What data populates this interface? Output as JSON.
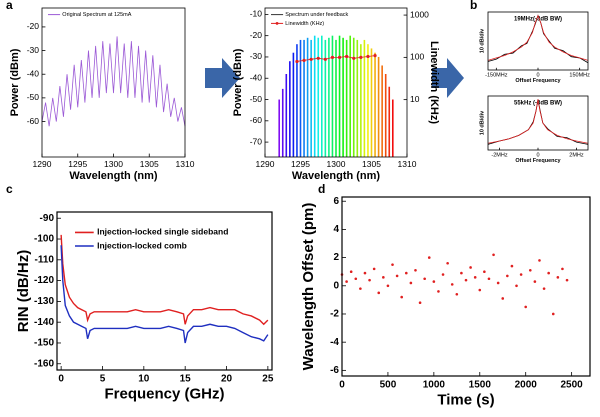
{
  "panel_labels": [
    "a",
    "b",
    "c",
    "d"
  ],
  "chart_data": [
    {
      "type": "line",
      "xlabel": "Wavelength (nm)",
      "ylabel": "Power (dBm)",
      "legend": "upper left",
      "xlim": [
        1290,
        1310
      ],
      "xticks": [
        1290,
        1295,
        1300,
        1305,
        1310
      ],
      "ylim": [
        -75,
        -12
      ],
      "yticks": [
        -60,
        -50,
        -40,
        -30,
        -20
      ],
      "series": [
        {
          "name": "Original Spectrum at 125mA",
          "color": "#9b59d6",
          "x": [
            1290,
            1290.5,
            1291,
            1291.5,
            1292,
            1292.5,
            1293,
            1293.5,
            1294,
            1294.5,
            1295,
            1295.5,
            1296,
            1296.5,
            1297,
            1297.5,
            1298,
            1298.5,
            1299,
            1299.5,
            1300,
            1300.5,
            1301,
            1301.5,
            1302,
            1302.5,
            1303,
            1303.5,
            1304,
            1304.5,
            1305,
            1305.5,
            1306,
            1306.5,
            1307,
            1307.5,
            1308,
            1308.5,
            1309,
            1309.5,
            1310
          ],
          "values": [
            -60,
            -52,
            -62,
            -50,
            -60,
            -45,
            -58,
            -40,
            -55,
            -36,
            -54,
            -34,
            -52,
            -30,
            -50,
            -28,
            -50,
            -26,
            -48,
            -27,
            -48,
            -24,
            -48,
            -27,
            -50,
            -26,
            -50,
            -28,
            -52,
            -30,
            -52,
            -32,
            -54,
            -36,
            -56,
            -44,
            -58,
            -50,
            -60,
            -54,
            -62
          ]
        }
      ]
    },
    {
      "type": "stem",
      "xlabel": "Wavelength (nm)",
      "ylabel": "Power (dBm)",
      "y2label": "Linewidth (KHz)",
      "ylabel_color": "#1f1fd0",
      "y2label_color": "#e02020",
      "legend": "upper left",
      "xlim": [
        1290,
        1310
      ],
      "xticks": [
        1290,
        1295,
        1300,
        1305,
        1310
      ],
      "ylim": [
        -77,
        -7
      ],
      "yticks": [
        -70,
        -60,
        -50,
        -40,
        -30,
        -20,
        -10
      ],
      "y2lim": [
        0.44,
        1470
      ],
      "y2ticks": [
        10,
        100,
        1000
      ],
      "y2log": true,
      "colormap": "rainbow",
      "series": [
        {
          "name": "Spectrum under feedback",
          "color": "#333333",
          "x": [
            1292,
            1292.5,
            1293,
            1293.5,
            1294,
            1294.5,
            1295,
            1295.5,
            1296,
            1296.5,
            1297,
            1297.5,
            1298,
            1298.5,
            1299,
            1299.5,
            1300,
            1300.5,
            1301,
            1301.5,
            1302,
            1302.5,
            1303,
            1303.5,
            1304,
            1304.5,
            1305,
            1305.5,
            1306,
            1306.5,
            1307,
            1307.5,
            1308
          ],
          "values": [
            -50,
            -45,
            -38,
            -32,
            -28,
            -24,
            -22,
            -22,
            -21,
            -22,
            -20,
            -21,
            -20,
            -22,
            -21,
            -20,
            -22,
            -20,
            -21,
            -22,
            -20,
            -21,
            -22,
            -24,
            -22,
            -24,
            -26,
            -28,
            -30,
            -34,
            -38,
            -44,
            -50
          ]
        },
        {
          "name": "Linewidth (KHz)",
          "color": "#e02020",
          "axis": "y2",
          "type": "line",
          "markers": true,
          "x": [
            1294.5,
            1295.5,
            1296.5,
            1297.5,
            1298.5,
            1299.5,
            1300.5,
            1301.5,
            1302.5,
            1303.5,
            1304.5,
            1305.5
          ],
          "values": [
            80,
            85,
            90,
            95,
            90,
            100,
            100,
            105,
            95,
            100,
            105,
            110
          ]
        }
      ]
    },
    {
      "type": "line",
      "title": "19MHz(-3dB BW)",
      "xlabel": "Offset Frequency",
      "ylabel": "10 dB/div",
      "xlim": [
        -180,
        180
      ],
      "xticks": [
        {
          "value": -150,
          "label": "-150MHz"
        },
        0,
        {
          "value": 150,
          "label": "150MHz"
        }
      ],
      "ylim": [
        -45,
        3
      ],
      "x": [
        -180,
        -150,
        -120,
        -90,
        -60,
        -40,
        -20,
        -10,
        0,
        10,
        20,
        40,
        60,
        90,
        120,
        150,
        180
      ],
      "series": [
        {
          "color": "#000000",
          "values": [
            -38,
            -36,
            -32,
            -31,
            -25,
            -23,
            -13,
            -7,
            0,
            -6,
            -15,
            -21,
            -27,
            -29,
            -34,
            -35,
            -39
          ]
        },
        {
          "color": "#e02020",
          "values": [
            -37,
            -35,
            -33,
            -30,
            -26,
            -22,
            -14,
            -6,
            0,
            -6,
            -14,
            -22,
            -26,
            -30,
            -33,
            -35,
            -37
          ]
        }
      ]
    },
    {
      "type": "line",
      "title": "55kHz (-3dB BW)",
      "xlabel": "Offset Frequency",
      "ylabel": "10 dB/div",
      "xlim": [
        -2.6,
        2.6
      ],
      "xticks": [
        {
          "value": -2,
          "label": "-2MHz"
        },
        0,
        {
          "value": 2,
          "label": "2MHz"
        }
      ],
      "ylim": [
        -45,
        3
      ],
      "x": [
        -2.6,
        -2,
        -1.5,
        -1,
        -0.5,
        -0.25,
        -0.1,
        0,
        0.1,
        0.25,
        0.5,
        1,
        1.5,
        2,
        2.6
      ],
      "series": [
        {
          "color": "#000000",
          "values": [
            -40,
            -37,
            -35,
            -32,
            -27,
            -20,
            -10,
            0,
            -9,
            -21,
            -26,
            -33,
            -34,
            -38,
            -40
          ]
        },
        {
          "color": "#e02020",
          "values": [
            -39,
            -37,
            -35,
            -32,
            -27,
            -21,
            -10,
            0,
            -10,
            -21,
            -27,
            -32,
            -35,
            -37,
            -39
          ]
        }
      ]
    },
    {
      "type": "line",
      "xlabel": "Frequency (GHz)",
      "ylabel": "RIN (dB/Hz)",
      "legend": "upper left",
      "xlim": [
        -0.5,
        25.5
      ],
      "xticks": [
        0,
        5,
        10,
        15,
        20,
        25
      ],
      "ylim": [
        -163,
        -87
      ],
      "yticks": [
        -160,
        -150,
        -140,
        -130,
        -120,
        -110,
        -100,
        -90
      ],
      "x": [
        0,
        0.2,
        0.5,
        1,
        1.5,
        2,
        2.5,
        3,
        3.2,
        3.5,
        4,
        5,
        6,
        7,
        8,
        9,
        10,
        11,
        12,
        13,
        14,
        14.8,
        15,
        15.3,
        16,
        17,
        18,
        19,
        20,
        21,
        22,
        23,
        24,
        24.5,
        25
      ],
      "series": [
        {
          "name": "Injection-locked single sideband",
          "color": "#e02020",
          "values": [
            -98,
            -112,
            -122,
            -128,
            -131,
            -133,
            -134,
            -135,
            -139,
            -136,
            -135,
            -135,
            -135,
            -135,
            -135,
            -134,
            -135,
            -135,
            -135,
            -134,
            -135,
            -136,
            -141,
            -137,
            -134,
            -134,
            -133,
            -134,
            -134,
            -134,
            -136,
            -137,
            -139,
            -141,
            -139
          ]
        },
        {
          "name": "Injection-locked comb",
          "color": "#1f2fc0",
          "values": [
            -103,
            -120,
            -132,
            -137,
            -140,
            -141,
            -142,
            -143,
            -148,
            -144,
            -143,
            -143,
            -143,
            -143,
            -143,
            -142,
            -143,
            -143,
            -143,
            -142,
            -143,
            -144,
            -150,
            -145,
            -142,
            -142,
            -141,
            -142,
            -142,
            -143,
            -145,
            -147,
            -148,
            -149,
            -146
          ]
        }
      ]
    },
    {
      "type": "scatter",
      "xlabel": "Time (s)",
      "ylabel": "Wavelength Offset (pm)",
      "xlim": [
        0,
        2700
      ],
      "xticks": [
        0,
        500,
        1000,
        1500,
        2000,
        2500
      ],
      "ylim": [
        -6.4,
        6.3
      ],
      "yticks": [
        -6,
        -4,
        -2,
        0,
        2,
        4,
        6
      ],
      "series": [
        {
          "color": "#e02020",
          "x": [
            0,
            50,
            100,
            150,
            200,
            250,
            300,
            350,
            400,
            450,
            500,
            550,
            600,
            650,
            700,
            750,
            800,
            850,
            900,
            950,
            1000,
            1050,
            1100,
            1150,
            1200,
            1250,
            1300,
            1350,
            1400,
            1450,
            1500,
            1550,
            1600,
            1650,
            1700,
            1750,
            1800,
            1850,
            1900,
            1950,
            2000,
            2050,
            2100,
            2150,
            2200,
            2250,
            2300,
            2350,
            2400,
            2450
          ],
          "values": [
            0.8,
            0.3,
            1.0,
            0.5,
            -0.2,
            0.9,
            0.4,
            1.2,
            -0.5,
            0.6,
            0.0,
            1.5,
            0.7,
            -0.8,
            0.9,
            0.2,
            1.1,
            -1.2,
            0.5,
            2.0,
            0.3,
            -0.4,
            0.8,
            1.6,
            0.1,
            -0.6,
            0.9,
            0.4,
            1.3,
            0.6,
            -0.3,
            1.0,
            0.5,
            2.2,
            0.2,
            -0.9,
            0.7,
            1.4,
            0.0,
            0.8,
            -1.5,
            1.1,
            0.3,
            1.8,
            -0.2,
            0.9,
            -2.0,
            0.6,
            1.2,
            0.4
          ]
        }
      ]
    }
  ]
}
